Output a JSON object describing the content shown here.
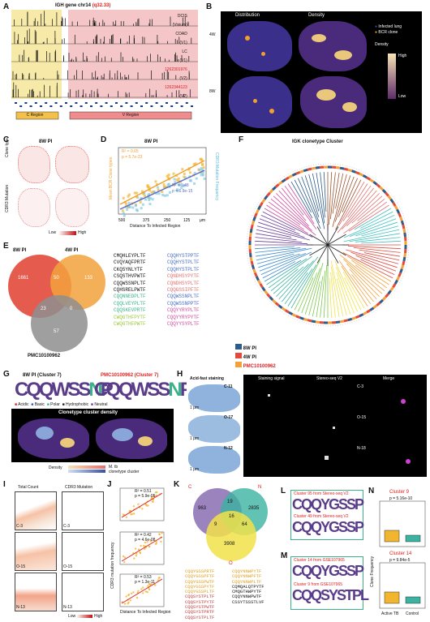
{
  "panels": {
    "A": {
      "letter": "A",
      "title": "IGH gene chr14",
      "band": "(q32.33)",
      "tracks": [
        "DCIS\n(Visium)",
        "COAD\n(V1)",
        "LC\n(V1)",
        "1262301976\n(V2)",
        "1262344123\n(V2)"
      ],
      "tracks_flat": [
        "DCIS",
        "(Visium)",
        "COAD",
        "(V1)",
        "LC",
        "(V1)",
        "1262301976",
        "(V2)",
        "1262344123",
        "(V2)"
      ],
      "c_region": "C Region",
      "v_region": "V Region"
    },
    "B": {
      "letter": "B",
      "col1": "Distribution",
      "col2": "Density",
      "row1": "4W",
      "row2": "8W",
      "legend_infected": "Infected lung",
      "legend_bcr": "BCR clone",
      "density": "Density",
      "high": "High",
      "low": "Low",
      "side1": "M. tb",
      "side2": "BCR clone"
    },
    "C": {
      "letter": "C",
      "title": "8W PI",
      "row1": "Clone type",
      "row2": "CDR3 Mutation",
      "low": "Low",
      "high": "High"
    },
    "D": {
      "letter": "D",
      "title": "8W PI",
      "r2a": "R² = 0.65",
      "pa": "p = 5.7e-23",
      "r2b": "R² = 0.48",
      "pb": "p = 6.9e-15",
      "xlabel": "Distance To Infected Region",
      "ylabel_left": "Mean BCR Clone types",
      "ylabel_right": "CDR3 Mutation Frequency",
      "unit": "μm"
    },
    "E": {
      "letter": "E",
      "set1": "8W PI",
      "set2": "4W PI",
      "set3": "PMC10100962",
      "n1": "1661",
      "n12": "50",
      "n2": "133",
      "n13": "23",
      "n23": "0",
      "n3": "57"
    },
    "F": {
      "letter": "F",
      "title": "IGK clonetype Cluster",
      "legend": [
        "8W PI",
        "4W PI",
        "PMC10100962"
      ]
    },
    "G": {
      "letter": "G",
      "t1": "8W PI (Cluster 7)",
      "t2": "PMC10100962 (Cluster 7)",
      "legend": [
        "Acidic",
        "Basic",
        "Polar",
        "Hydrophobic",
        "Neutral"
      ],
      "density_title": "Clonetype cluster  density",
      "density": "Density",
      "side1": "M. tb",
      "side2": "clonetype cluster"
    },
    "H": {
      "letter": "H",
      "headers": [
        "Acid-fast  staining",
        "Staining signal",
        "Stereo-seq V2",
        "Merge"
      ],
      "labels": [
        "C-11",
        "O-17",
        "N-12"
      ],
      "labels2": [
        "C-3",
        "O-15",
        "N-18"
      ],
      "scale": "1 μm"
    },
    "I": {
      "letter": "I",
      "h1": "Total Count",
      "h2": "CDR3 Mutation",
      "labels": [
        "C-3",
        "O-15",
        "N-13"
      ],
      "low": "Low",
      "high": "High"
    },
    "J": {
      "letter": "J",
      "stats": [
        [
          "R² = 0.51",
          "p = 5.9e-05"
        ],
        [
          "R² = 0.42",
          "p = 4.6e-08"
        ],
        [
          "R² = 0.53",
          "p = 1.3e-11"
        ]
      ],
      "ylabel": "CDR3 mutation frequency",
      "xlabel": "Distance To Infected Region",
      "unit": "μm"
    },
    "K": {
      "letter": "K",
      "sets": [
        "C",
        "N",
        "O"
      ],
      "nums": [
        "963",
        "19",
        "2835",
        "16",
        "9",
        "64",
        "3908"
      ]
    },
    "L": {
      "letter": "L",
      "t1": "Cluster 95 from Stereo-seq V2",
      "t2": "Cluster 49 from Stereo-seq V2"
    },
    "M": {
      "letter": "M",
      "t1": "Cluster 14 from GSE107965",
      "t2": "Cluster 9 from GSE107965"
    },
    "N": {
      "letter": "N",
      "t1": "Cluster 9",
      "p1": "p = 5.16e-10",
      "t2": "Cluster 14",
      "p2": "p = 9.84e-5",
      "groups": [
        "Active TB",
        "Control"
      ],
      "ylabel": "Clone Frequency"
    }
  },
  "cdr3_list": [
    [
      "CMQHLEYPLTF",
      "CQQHYSTPPTF"
    ],
    [
      "CVQYAQFPRTF",
      "CQQHYSTPLTF"
    ],
    [
      "CKQSYNLYTF",
      "CQQHYSTPLTF"
    ],
    [
      "CSQSTHVPWTF",
      "CQNDHSYPYTF"
    ],
    [
      "CQQWSSNPLTF",
      "CQNDHSYPLTF"
    ],
    [
      "CQHSRELPWTF",
      "CQQGSSIPFTF"
    ],
    [
      "CQQNNEDPLTF",
      "CQQWSSNPLTF"
    ],
    [
      "CQQLVEYPLTF",
      "CQQWSSNPPTF"
    ],
    [
      "CQQSKEVPRTF",
      "CQQYYRYPLTF"
    ],
    [
      "CWQGTHFPYTF",
      "CQQYYRYPYTF"
    ],
    [
      "CWQGTHFPWTF",
      "CQQYYSYPLTF"
    ]
  ],
  "k_list": [
    [
      "CQQYGSSPRTF",
      "CQQYNNWPYTF"
    ],
    [
      "CQQYGSSPFTF",
      "CQQYNNWPFTF"
    ],
    [
      "CQQYGSSPWTF",
      "CQQYNNWPLTF"
    ],
    [
      "CQQYGSSPYTF",
      "CQMQALQTPYTF"
    ],
    [
      "CQQYGSSPLTF",
      "CMQGTHWPYTF"
    ],
    [
      "CQQSYSTPLTF",
      "CQQYNNWPWTF"
    ],
    [
      "CQQSYSTPYTF",
      "CSSYTSSSTLVF"
    ],
    [
      "CQQSYSTPWTF",
      ""
    ],
    [
      "CQQSYSTPRTF",
      ""
    ],
    [
      "CQQSYSTPLTF",
      ""
    ]
  ],
  "colors": {
    "infected": "#3b4fa0",
    "bcr": "#f0a030",
    "c_region": "#f7e9a8",
    "v_region": "#f4c6c8",
    "red": "#e02020"
  }
}
